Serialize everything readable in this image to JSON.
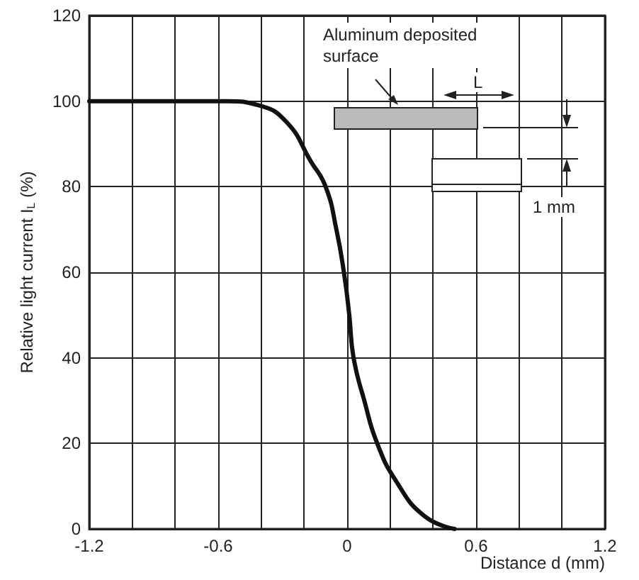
{
  "chart_data": {
    "type": "line",
    "xlabel": "Distance d (mm)",
    "ylabel": "Relative light current I$_{L}$ (%)",
    "x": [
      -1.2,
      -0.56,
      -0.41,
      -0.28,
      -0.17,
      -0.1,
      -0.05,
      -0.015,
      0.01,
      0.03,
      0.08,
      0.14,
      0.23,
      0.36,
      0.5
    ],
    "series": [
      {
        "color": "#111111",
        "values": [
          100,
          100,
          99,
          95,
          86,
          80,
          70,
          60,
          50,
          40,
          30,
          20,
          11,
          3,
          0
        ]
      }
    ],
    "xlim": [
      -1.2,
      1.2
    ],
    "xticks": [
      -1.2,
      {
        "value": -1,
        "label": null
      },
      {
        "value": -0.8,
        "label": null
      },
      -0.6,
      {
        "value": -0.4,
        "label": null
      },
      {
        "value": -0.2,
        "label": null
      },
      0,
      {
        "value": 0.2,
        "label": null
      },
      {
        "value": 0.4,
        "label": null
      },
      0.6,
      {
        "value": 0.8,
        "label": null
      },
      {
        "value": 1,
        "label": null
      },
      1.2
    ],
    "ylim": [
      0,
      120
    ],
    "yticks": [
      0,
      20,
      40,
      60,
      80,
      100,
      120
    ],
    "grid": true,
    "marker": "none",
    "line_style": "solid",
    "annotations": [
      "Aluminum deposited\nsurface",
      "L",
      "1 mm"
    ]
  }
}
